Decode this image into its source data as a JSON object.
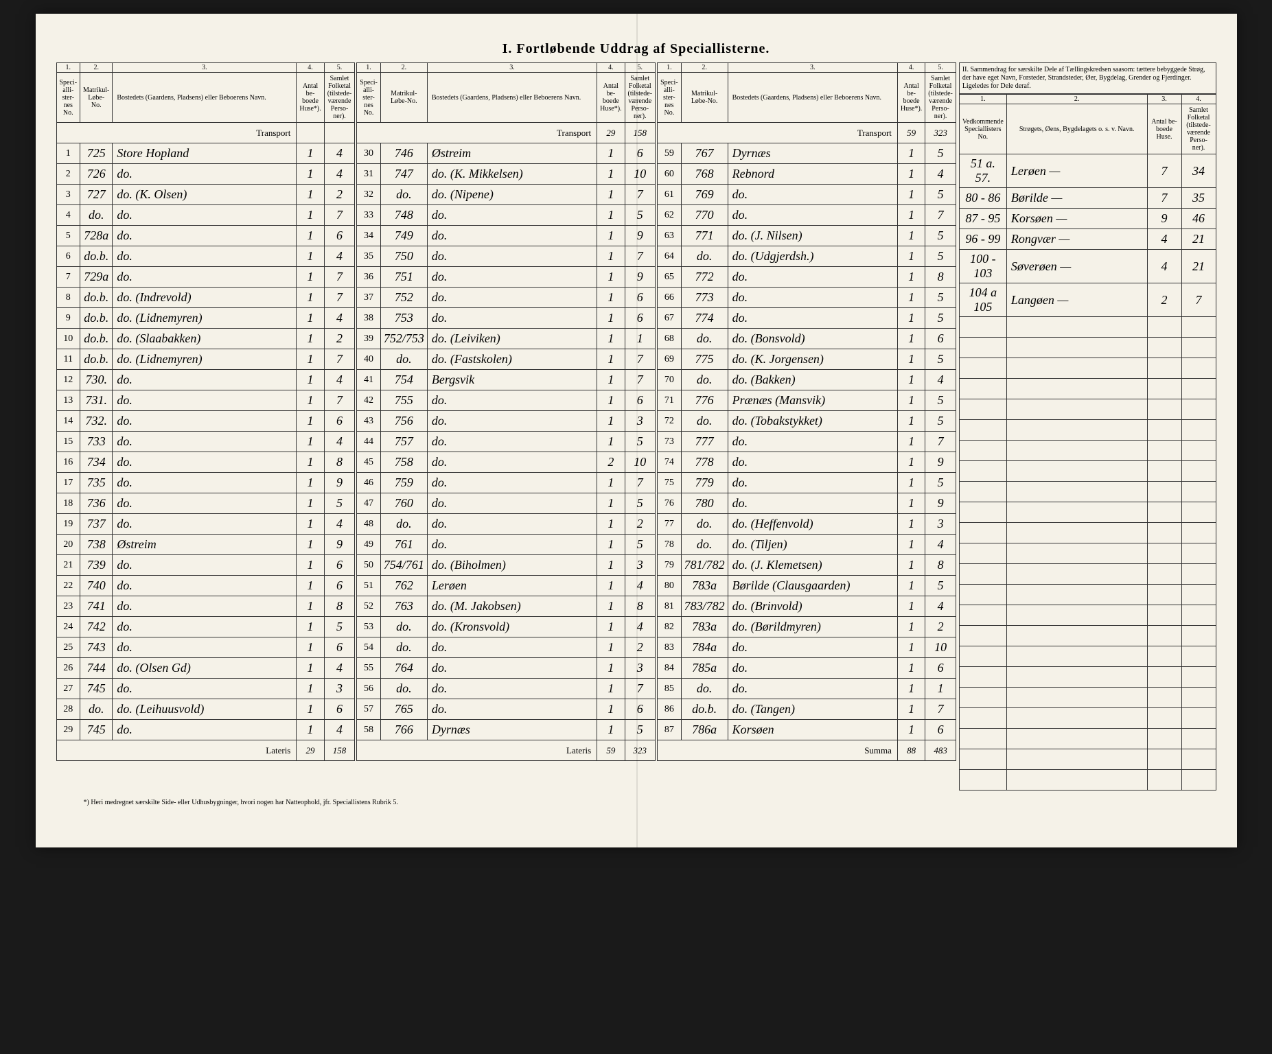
{
  "title_section1": "I. Fortløbende Uddrag af Speciallisterne.",
  "title_section2": "II. Sammendrag for særskilte Dele af Tællingskredsen saasom: tættere bebyggede Strøg, der have eget Navn, Forsteder, Strandsteder, Øer, Bygdelag, Grender og Fjerdinger. Ligeledes for Dele deraf.",
  "col_headers": {
    "c1": "Speci-alli-ster-nes No.",
    "c2": "Matrikul-Løbe-No.",
    "c3": "Bostedets (Gaardens, Pladsens) eller Beboerens Navn.",
    "c4": "Antal be-boede Huse*).",
    "c5": "Samlet Folketal (tilstede-værende Perso-ner).",
    "s2_c1": "Vedkommende Speciallisters No.",
    "s2_c2": "Strøgets, Øens, Bygdelagets o. s. v. Navn.",
    "s2_c3": "Antal be-boede Huse.",
    "s2_c4": "Samlet Folketal (tilstede-værende Perso-ner)."
  },
  "col_nums": [
    "1.",
    "2.",
    "3.",
    "4.",
    "5."
  ],
  "col_nums_s2": [
    "1.",
    "2.",
    "3.",
    "4."
  ],
  "transport_label": "Transport",
  "lateris_label": "Lateris",
  "summa_label": "Summa",
  "footnote": "*) Heri medregnet særskilte Side- eller Udhusbygninger, hvori nogen har Natteophold, jfr. Speciallistens Rubrik 5.",
  "block_a": {
    "transport": [
      "",
      ""
    ],
    "rows": [
      {
        "n": "1",
        "m": "725",
        "name": "Store Hopland",
        "h": "1",
        "p": "4"
      },
      {
        "n": "2",
        "m": "726",
        "name": "do.",
        "h": "1",
        "p": "4"
      },
      {
        "n": "3",
        "m": "727",
        "name": "do. (K. Olsen)",
        "h": "1",
        "p": "2"
      },
      {
        "n": "4",
        "m": "do.",
        "name": "do.",
        "h": "1",
        "p": "7"
      },
      {
        "n": "5",
        "m": "728a",
        "name": "do.",
        "h": "1",
        "p": "6"
      },
      {
        "n": "6",
        "m": "do.b.",
        "name": "do.",
        "h": "1",
        "p": "4"
      },
      {
        "n": "7",
        "m": "729a",
        "name": "do.",
        "h": "1",
        "p": "7"
      },
      {
        "n": "8",
        "m": "do.b.",
        "name": "do. (Indrevold)",
        "h": "1",
        "p": "7"
      },
      {
        "n": "9",
        "m": "do.b.",
        "name": "do. (Lidnemyren)",
        "h": "1",
        "p": "4"
      },
      {
        "n": "10",
        "m": "do.b.",
        "name": "do. (Slaabakken)",
        "h": "1",
        "p": "2"
      },
      {
        "n": "11",
        "m": "do.b.",
        "name": "do. (Lidnemyren)",
        "h": "1",
        "p": "7"
      },
      {
        "n": "12",
        "m": "730.",
        "name": "do.",
        "h": "1",
        "p": "4"
      },
      {
        "n": "13",
        "m": "731.",
        "name": "do.",
        "h": "1",
        "p": "7"
      },
      {
        "n": "14",
        "m": "732.",
        "name": "do.",
        "h": "1",
        "p": "6"
      },
      {
        "n": "15",
        "m": "733",
        "name": "do.",
        "h": "1",
        "p": "4"
      },
      {
        "n": "16",
        "m": "734",
        "name": "do.",
        "h": "1",
        "p": "8"
      },
      {
        "n": "17",
        "m": "735",
        "name": "do.",
        "h": "1",
        "p": "9"
      },
      {
        "n": "18",
        "m": "736",
        "name": "do.",
        "h": "1",
        "p": "5"
      },
      {
        "n": "19",
        "m": "737",
        "name": "do.",
        "h": "1",
        "p": "4"
      },
      {
        "n": "20",
        "m": "738",
        "name": "Østreim",
        "h": "1",
        "p": "9"
      },
      {
        "n": "21",
        "m": "739",
        "name": "do.",
        "h": "1",
        "p": "6"
      },
      {
        "n": "22",
        "m": "740",
        "name": "do.",
        "h": "1",
        "p": "6"
      },
      {
        "n": "23",
        "m": "741",
        "name": "do.",
        "h": "1",
        "p": "8"
      },
      {
        "n": "24",
        "m": "742",
        "name": "do.",
        "h": "1",
        "p": "5"
      },
      {
        "n": "25",
        "m": "743",
        "name": "do.",
        "h": "1",
        "p": "6"
      },
      {
        "n": "26",
        "m": "744",
        "name": "do. (Olsen Gd)",
        "h": "1",
        "p": "4"
      },
      {
        "n": "27",
        "m": "745",
        "name": "do.",
        "h": "1",
        "p": "3"
      },
      {
        "n": "28",
        "m": "do.",
        "name": "do. (Leihuusvold)",
        "h": "1",
        "p": "6"
      },
      {
        "n": "29",
        "m": "745",
        "name": "do.",
        "h": "1",
        "p": "4"
      }
    ],
    "lateris": [
      "29",
      "158"
    ]
  },
  "block_b": {
    "transport": [
      "29",
      "158"
    ],
    "rows": [
      {
        "n": "30",
        "m": "746",
        "name": "Østreim",
        "h": "1",
        "p": "6"
      },
      {
        "n": "31",
        "m": "747",
        "name": "do. (K. Mikkelsen)",
        "h": "1",
        "p": "10"
      },
      {
        "n": "32",
        "m": "do.",
        "name": "do. (Nipene)",
        "h": "1",
        "p": "7"
      },
      {
        "n": "33",
        "m": "748",
        "name": "do.",
        "h": "1",
        "p": "5"
      },
      {
        "n": "34",
        "m": "749",
        "name": "do.",
        "h": "1",
        "p": "9"
      },
      {
        "n": "35",
        "m": "750",
        "name": "do.",
        "h": "1",
        "p": "7"
      },
      {
        "n": "36",
        "m": "751",
        "name": "do.",
        "h": "1",
        "p": "9"
      },
      {
        "n": "37",
        "m": "752",
        "name": "do.",
        "h": "1",
        "p": "6"
      },
      {
        "n": "38",
        "m": "753",
        "name": "do.",
        "h": "1",
        "p": "6"
      },
      {
        "n": "39",
        "m": "752/753",
        "name": "do. (Leiviken)",
        "h": "1",
        "p": "1"
      },
      {
        "n": "40",
        "m": "do.",
        "name": "do. (Fastskolen)",
        "h": "1",
        "p": "7"
      },
      {
        "n": "41",
        "m": "754",
        "name": "Bergsvik",
        "h": "1",
        "p": "7"
      },
      {
        "n": "42",
        "m": "755",
        "name": "do.",
        "h": "1",
        "p": "6"
      },
      {
        "n": "43",
        "m": "756",
        "name": "do.",
        "h": "1",
        "p": "3"
      },
      {
        "n": "44",
        "m": "757",
        "name": "do.",
        "h": "1",
        "p": "5"
      },
      {
        "n": "45",
        "m": "758",
        "name": "do.",
        "h": "2",
        "p": "10"
      },
      {
        "n": "46",
        "m": "759",
        "name": "do.",
        "h": "1",
        "p": "7"
      },
      {
        "n": "47",
        "m": "760",
        "name": "do.",
        "h": "1",
        "p": "5"
      },
      {
        "n": "48",
        "m": "do.",
        "name": "do.",
        "h": "1",
        "p": "2"
      },
      {
        "n": "49",
        "m": "761",
        "name": "do.",
        "h": "1",
        "p": "5"
      },
      {
        "n": "50",
        "m": "754/761",
        "name": "do. (Biholmen)",
        "h": "1",
        "p": "3"
      },
      {
        "n": "51",
        "m": "762",
        "name": "Lerøen",
        "h": "1",
        "p": "4"
      },
      {
        "n": "52",
        "m": "763",
        "name": "do. (M. Jakobsen)",
        "h": "1",
        "p": "8"
      },
      {
        "n": "53",
        "m": "do.",
        "name": "do. (Kronsvold)",
        "h": "1",
        "p": "4"
      },
      {
        "n": "54",
        "m": "do.",
        "name": "do.",
        "h": "1",
        "p": "2"
      },
      {
        "n": "55",
        "m": "764",
        "name": "do.",
        "h": "1",
        "p": "3"
      },
      {
        "n": "56",
        "m": "do.",
        "name": "do.",
        "h": "1",
        "p": "7"
      },
      {
        "n": "57",
        "m": "765",
        "name": "do.",
        "h": "1",
        "p": "6"
      },
      {
        "n": "58",
        "m": "766",
        "name": "Dyrnæs",
        "h": "1",
        "p": "5"
      }
    ],
    "lateris": [
      "59",
      "323"
    ]
  },
  "block_c": {
    "transport": [
      "59",
      "323"
    ],
    "rows": [
      {
        "n": "59",
        "m": "767",
        "name": "Dyrnæs",
        "h": "1",
        "p": "5"
      },
      {
        "n": "60",
        "m": "768",
        "name": "Rebnord",
        "h": "1",
        "p": "4"
      },
      {
        "n": "61",
        "m": "769",
        "name": "do.",
        "h": "1",
        "p": "5"
      },
      {
        "n": "62",
        "m": "770",
        "name": "do.",
        "h": "1",
        "p": "7"
      },
      {
        "n": "63",
        "m": "771",
        "name": "do. (J. Nilsen)",
        "h": "1",
        "p": "5"
      },
      {
        "n": "64",
        "m": "do.",
        "name": "do. (Udgjerdsh.)",
        "h": "1",
        "p": "5"
      },
      {
        "n": "65",
        "m": "772",
        "name": "do.",
        "h": "1",
        "p": "8"
      },
      {
        "n": "66",
        "m": "773",
        "name": "do.",
        "h": "1",
        "p": "5"
      },
      {
        "n": "67",
        "m": "774",
        "name": "do.",
        "h": "1",
        "p": "5"
      },
      {
        "n": "68",
        "m": "do.",
        "name": "do. (Bonsvold)",
        "h": "1",
        "p": "6"
      },
      {
        "n": "69",
        "m": "775",
        "name": "do. (K. Jorgensen)",
        "h": "1",
        "p": "5"
      },
      {
        "n": "70",
        "m": "do.",
        "name": "do. (Bakken)",
        "h": "1",
        "p": "4"
      },
      {
        "n": "71",
        "m": "776",
        "name": "Prænæs (Mansvik)",
        "h": "1",
        "p": "5"
      },
      {
        "n": "72",
        "m": "do.",
        "name": "do. (Tobakstykket)",
        "h": "1",
        "p": "5"
      },
      {
        "n": "73",
        "m": "777",
        "name": "do.",
        "h": "1",
        "p": "7"
      },
      {
        "n": "74",
        "m": "778",
        "name": "do.",
        "h": "1",
        "p": "9"
      },
      {
        "n": "75",
        "m": "779",
        "name": "do.",
        "h": "1",
        "p": "5"
      },
      {
        "n": "76",
        "m": "780",
        "name": "do.",
        "h": "1",
        "p": "9"
      },
      {
        "n": "77",
        "m": "do.",
        "name": "do. (Heffenvold)",
        "h": "1",
        "p": "3"
      },
      {
        "n": "78",
        "m": "do.",
        "name": "do. (Tiljen)",
        "h": "1",
        "p": "4"
      },
      {
        "n": "79",
        "m": "781/782",
        "name": "do. (J. Klemetsen)",
        "h": "1",
        "p": "8"
      },
      {
        "n": "80",
        "m": "783a",
        "name": "Børilde (Clausgaarden)",
        "h": "1",
        "p": "5"
      },
      {
        "n": "81",
        "m": "783/782",
        "name": "do. (Brinvold)",
        "h": "1",
        "p": "4"
      },
      {
        "n": "82",
        "m": "783a",
        "name": "do. (Børildmyren)",
        "h": "1",
        "p": "2"
      },
      {
        "n": "83",
        "m": "784a",
        "name": "do.",
        "h": "1",
        "p": "10"
      },
      {
        "n": "84",
        "m": "785a",
        "name": "do.",
        "h": "1",
        "p": "6"
      },
      {
        "n": "85",
        "m": "do.",
        "name": "do.",
        "h": "1",
        "p": "1"
      },
      {
        "n": "86",
        "m": "do.b.",
        "name": "do. (Tangen)",
        "h": "1",
        "p": "7"
      },
      {
        "n": "87",
        "m": "786a",
        "name": "Korsøen",
        "h": "1",
        "p": "6"
      }
    ],
    "summa": [
      "88",
      "483"
    ]
  },
  "section2": {
    "rows": [
      {
        "no": "51 a. 57.",
        "name": "Lerøen —",
        "h": "7",
        "p": "34"
      },
      {
        "no": "80 - 86",
        "name": "Børilde —",
        "h": "7",
        "p": "35"
      },
      {
        "no": "87 - 95",
        "name": "Korsøen —",
        "h": "9",
        "p": "46"
      },
      {
        "no": "96 - 99",
        "name": "Rongvær —",
        "h": "4",
        "p": "21"
      },
      {
        "no": "100 - 103",
        "name": "Søverøen —",
        "h": "4",
        "p": "21"
      },
      {
        "no": "104 a 105",
        "name": "Langøen —",
        "h": "2",
        "p": "7"
      }
    ]
  }
}
